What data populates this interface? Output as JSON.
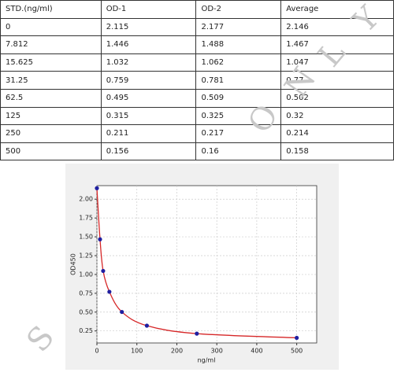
{
  "table": {
    "header": [
      "STD.(ng/ml)",
      "OD-1",
      "OD-2",
      "Average"
    ],
    "rows": [
      [
        "0",
        "2.115",
        "2.177",
        "2.146"
      ],
      [
        "7.812",
        "1.446",
        "1.488",
        "1.467"
      ],
      [
        "15.625",
        "1.032",
        "1.062",
        "1.047"
      ],
      [
        "31.25",
        "0.759",
        "0.781",
        "0.77"
      ],
      [
        "62.5",
        "0.495",
        "0.509",
        "0.502"
      ],
      [
        "125",
        "0.315",
        "0.325",
        "0.32"
      ],
      [
        "250",
        "0.211",
        "0.217",
        "0.214"
      ],
      [
        "500",
        "0.156",
        "0.16",
        "0.158"
      ]
    ]
  },
  "watermark": {
    "top": [
      "O",
      "N",
      "L",
      "Y"
    ],
    "left": "S"
  },
  "chart_data": {
    "type": "scatter",
    "xlabel": "ng/ml",
    "ylabel": "OD450",
    "x": [
      0,
      7.812,
      15.625,
      31.25,
      62.5,
      125,
      250,
      500
    ],
    "values": [
      2.146,
      1.467,
      1.047,
      0.77,
      0.502,
      0.32,
      0.214,
      0.158
    ],
    "color": "#1f1fa0",
    "line_color": "#d62728",
    "xlim": [
      0,
      550
    ],
    "ylim": [
      0.09,
      2.18
    ],
    "xticks": [
      0,
      100,
      200,
      300,
      400,
      500
    ],
    "yticks": [
      0.25,
      {
        "value": 0.5,
        "label": "0.50"
      },
      0.75,
      {
        "value": 1,
        "label": "1.00"
      },
      1.25,
      {
        "value": 1.5,
        "label": "1.50"
      },
      1.75,
      {
        "value": 2,
        "label": "2.00"
      }
    ],
    "grid": true
  }
}
